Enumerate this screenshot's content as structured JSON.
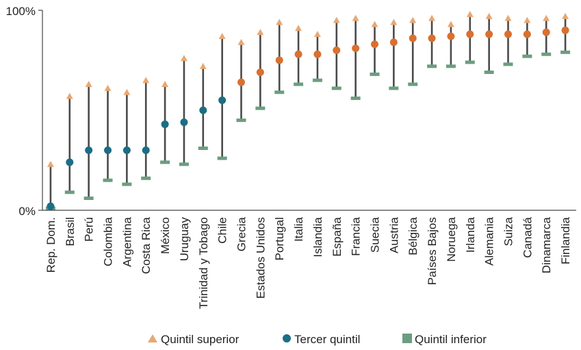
{
  "chart_data": {
    "type": "scatter",
    "ylim": [
      0,
      100
    ],
    "y_ticks": [
      "0%",
      "100%"
    ],
    "categories": [
      "Rep. Dom.",
      "Brasil",
      "Perú",
      "Colombia",
      "Argentina",
      "Costa Rica",
      "México",
      "Uruguay",
      "Trinidad y Tobago",
      "Chile",
      "Grecia",
      "Estados  Unidos",
      "Portugal",
      "Italia",
      "Islandia",
      "España",
      "Francia",
      "Suecia",
      "Austria",
      "Bélgica",
      "Países Bajos",
      "Noruega",
      "Irlanda",
      "Alemania",
      "Suiza",
      "Canadá",
      "Dinamarca",
      "Finlandia"
    ],
    "series": [
      {
        "name": "Quintil superior",
        "values": [
          23,
          57,
          63,
          61,
          59,
          65,
          63,
          76,
          72,
          87,
          84,
          89,
          94,
          91,
          88,
          95,
          96,
          93,
          94,
          95,
          96,
          93,
          98,
          97,
          96,
          95,
          96,
          97
        ]
      },
      {
        "name": "Tercer quintil",
        "values": [
          2,
          24,
          30,
          30,
          30,
          30,
          43,
          44,
          50,
          55,
          64,
          69,
          75,
          78,
          78,
          80,
          81,
          83,
          84,
          86,
          86,
          87,
          88,
          88,
          88,
          88,
          89,
          90
        ]
      },
      {
        "name": "Quintil inferior",
        "values": [
          1,
          9,
          6,
          15,
          13,
          16,
          24,
          23,
          31,
          26,
          45,
          51,
          59,
          63,
          65,
          61,
          56,
          68,
          61,
          63,
          72,
          72,
          74,
          69,
          73,
          77,
          78,
          79
        ]
      }
    ],
    "median_color_split_index": 10,
    "colors": {
      "top": "#e8a874",
      "middle_low": "#1a6e86",
      "middle_high": "#d9702f",
      "bottom": "#6b9e80",
      "stem": "#4a4a4a",
      "axis": "#444444"
    },
    "legend": {
      "placement": "bottom",
      "items": [
        "Quintil superior",
        "Tercer quintil",
        "Quintil inferior"
      ]
    }
  }
}
